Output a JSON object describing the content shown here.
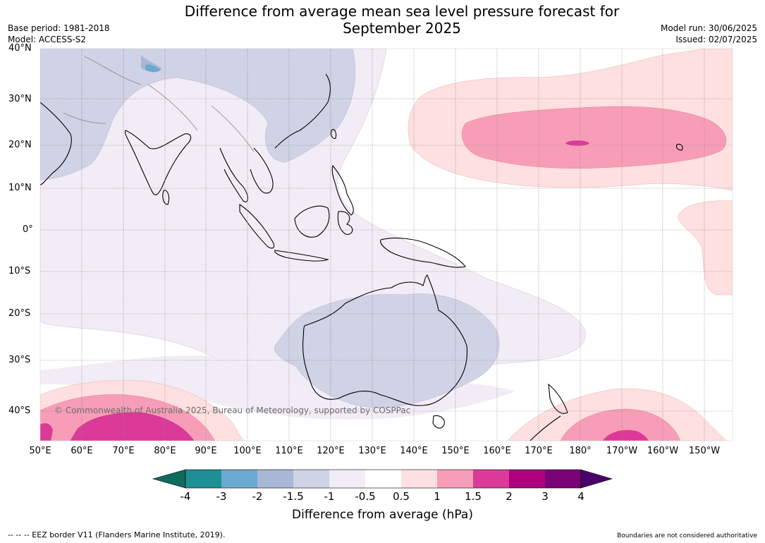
{
  "title_line1": "Difference from average mean sea level pressure forecast for",
  "title_line2": "September 2025",
  "meta": {
    "base_period": "Base period: 1981-2018",
    "model": "Model: ACCESS-S2",
    "model_run": "Model run: 30/06/2025",
    "issued": "Issued: 02/07/2025"
  },
  "axes": {
    "lat_labels": [
      "40°N",
      "30°N",
      "20°N",
      "10°N",
      "0°",
      "10°S",
      "20°S",
      "30°S",
      "40°S"
    ],
    "lon_labels": [
      "50°E",
      "60°E",
      "70°E",
      "80°E",
      "90°E",
      "100°E",
      "110°E",
      "120°E",
      "130°E",
      "140°E",
      "150°E",
      "160°E",
      "170°E",
      "180°",
      "170°W",
      "160°W",
      "150°W"
    ]
  },
  "copyright": "© Commonwealth of Australia 2025, Bureau of Meteorology, supported by COSPPac",
  "colorbar": {
    "labels": [
      "-4",
      "-3",
      "-2",
      "-1.5",
      "-1",
      "-0.5",
      "0.5",
      "1",
      "1.5",
      "2",
      "3",
      "4"
    ],
    "colors": [
      "#0e6b5e",
      "#1e8f94",
      "#6aaad0",
      "#a9b7d6",
      "#d0d2e5",
      "#f1ecf5",
      "#ffffff",
      "#fde0df",
      "#f89db7",
      "#dc3a98",
      "#ae017e",
      "#7a0177",
      "#49006a"
    ],
    "title": "Difference from average (hPa)"
  },
  "footer": {
    "eez": "--  --  -- EEZ border V11 (Flanders Marine Institute, 2019).",
    "boundaries": "Boundaries are not considered authoritative"
  }
}
